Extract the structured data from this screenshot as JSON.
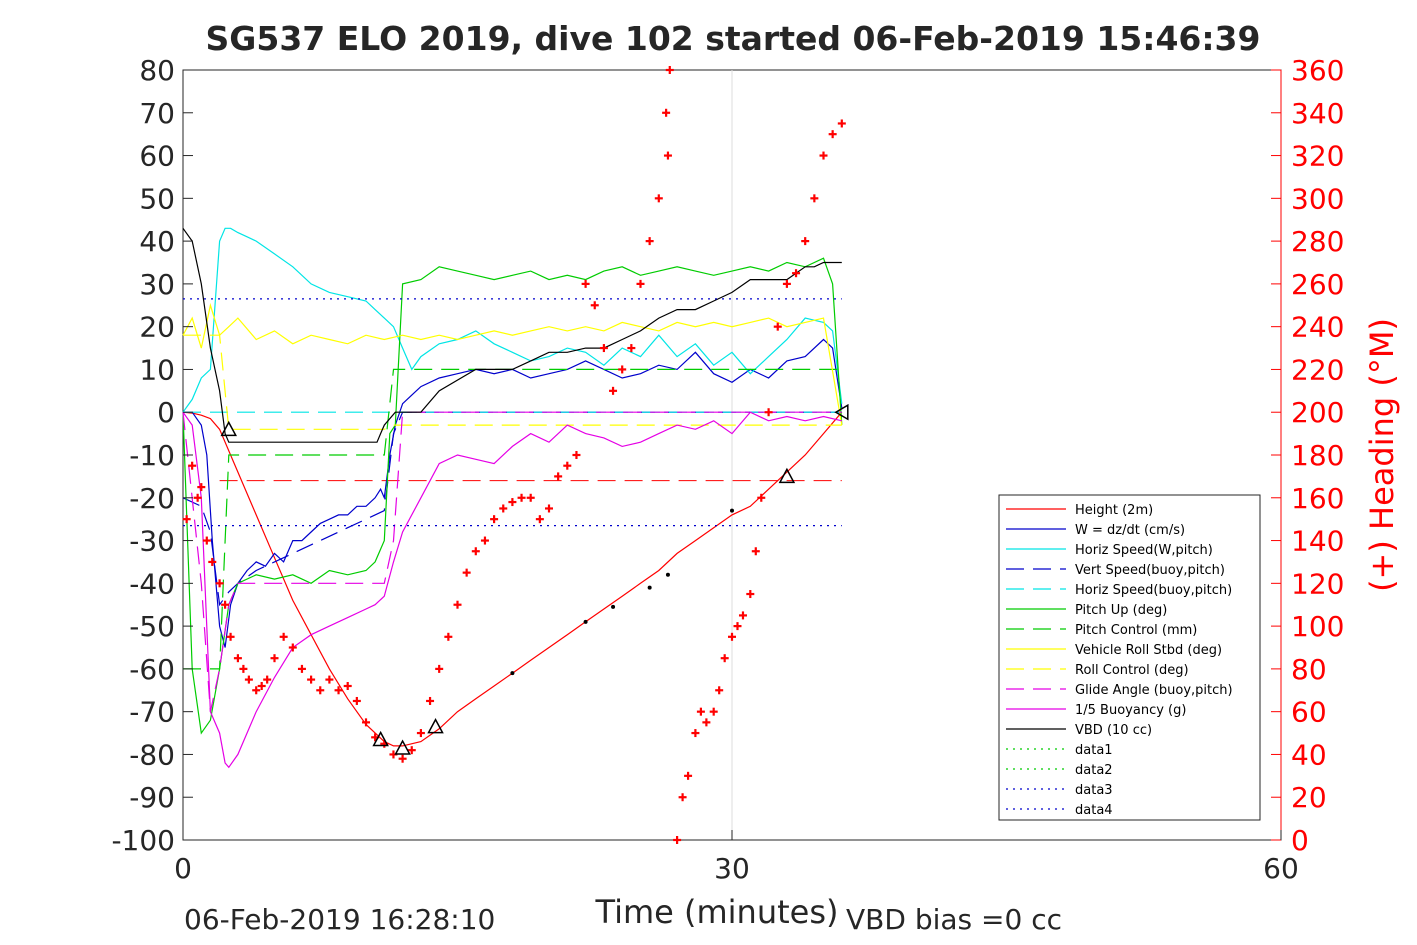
{
  "chart_data": {
    "type": "line",
    "title": "SG537 ELO 2019, dive 102 started 06-Feb-2019 15:46:39",
    "xlabel": "Time (minutes)",
    "ylabel_right": "(+) Heading (°M)",
    "footer_left": "06-Feb-2019 16:28:10",
    "footer_right": "VBD bias =0 cc",
    "xlim": [
      0,
      60
    ],
    "ylim": [
      -100,
      80
    ],
    "y2lim": [
      0,
      360
    ],
    "x_ticks": [
      "0",
      "30",
      "60"
    ],
    "y_ticks": [
      "-100",
      "-90",
      "-80",
      "-70",
      "-60",
      "-50",
      "-40",
      "-30",
      "-20",
      "-10",
      "0",
      "10",
      "20",
      "30",
      "40",
      "50",
      "60",
      "70",
      "80"
    ],
    "y2_ticks": [
      "0",
      "20",
      "40",
      "60",
      "80",
      "100",
      "120",
      "140",
      "160",
      "180",
      "200",
      "220",
      "240",
      "260",
      "280",
      "300",
      "320",
      "340",
      "360"
    ],
    "grid": "x only at 30",
    "legend_position": "lower-right",
    "colors": {
      "height": "#ff0000",
      "w": "#0000cc",
      "horiz": "#00e5e5",
      "pitch": "#00cc00",
      "roll": "#ffff00",
      "glide": "#e500e5",
      "vbd": "#000000",
      "heading": "#ff0000",
      "right_axis": "#ff0000"
    },
    "series": [
      {
        "name": "Height (2m)",
        "style": "solid",
        "color": "#ff0000",
        "x": [
          0,
          0.5,
          1,
          1.5,
          2,
          3,
          4,
          5,
          6,
          7,
          8,
          9,
          10,
          11,
          11.5,
          12,
          13,
          14,
          15,
          16,
          17,
          18,
          19,
          20,
          21,
          22,
          23,
          24,
          25,
          26,
          27,
          28,
          29,
          30,
          31,
          32,
          33,
          34,
          35,
          36
        ],
        "y": [
          0,
          -0.2,
          -0.7,
          -1.5,
          -4,
          -14,
          -24,
          -34,
          -44,
          -52,
          -60,
          -67,
          -73,
          -77,
          -78,
          -78,
          -77,
          -74,
          -70,
          -67,
          -64,
          -61,
          -58,
          -55,
          -52,
          -49,
          -46,
          -43,
          -40,
          -37,
          -33,
          -30,
          -27,
          -24,
          -22,
          -18,
          -14,
          -10,
          -5,
          0
        ]
      },
      {
        "name": "W = dz/dt (cm/s)",
        "style": "solid",
        "color": "#0000cc",
        "x": [
          0,
          0.5,
          1,
          1.3,
          1.6,
          2,
          2.3,
          2.6,
          3,
          3.5,
          4,
          4.5,
          5,
          5.5,
          6,
          6.5,
          7,
          7.5,
          8,
          8.5,
          9,
          9.5,
          10,
          10.5,
          10.8,
          11,
          11.3,
          11.6,
          12,
          12.5,
          13,
          14,
          15,
          16,
          17,
          18,
          19,
          20,
          21,
          22,
          23,
          24,
          25,
          26,
          27,
          28,
          29,
          30,
          31,
          32,
          33,
          34,
          35,
          35.5,
          36
        ],
        "y": [
          0,
          0,
          -3,
          -10,
          -30,
          -50,
          -55,
          -45,
          -40,
          -37,
          -35,
          -36,
          -33,
          -35,
          -30,
          -30,
          -28,
          -26,
          -25,
          -24,
          -24,
          -22,
          -22,
          -20,
          -18,
          -20,
          -10,
          -3,
          2,
          4,
          6,
          8,
          9,
          10,
          9,
          10,
          8,
          9,
          10,
          12,
          10,
          8,
          9,
          11,
          10,
          14,
          9,
          7,
          10,
          8,
          12,
          13,
          17,
          15,
          1
        ]
      },
      {
        "name": "Horiz Speed(W,pitch)",
        "style": "solid",
        "color": "#00e5e5",
        "x": [
          0,
          0.5,
          1,
          1.5,
          2,
          2.3,
          2.6,
          3,
          3.5,
          4,
          5,
          6,
          7,
          8,
          9,
          10,
          10.5,
          11,
          11.5,
          12,
          12.5,
          13,
          14,
          15,
          16,
          17,
          18,
          19,
          20,
          21,
          22,
          23,
          24,
          25,
          26,
          27,
          28,
          29,
          30,
          31,
          32,
          33,
          34,
          35,
          35.5,
          36
        ],
        "y": [
          0,
          3,
          8,
          10,
          40,
          43,
          43,
          42,
          41,
          40,
          37,
          34,
          30,
          28,
          27,
          26,
          24,
          22,
          20,
          15,
          10,
          13,
          16,
          17,
          19,
          16,
          14,
          12,
          13,
          15,
          14,
          11,
          15,
          13,
          18,
          13,
          16,
          11,
          14,
          9,
          13,
          17,
          22,
          21,
          19,
          2
        ]
      },
      {
        "name": "Vert Speed(buoy,pitch)",
        "style": "dash",
        "color": "#0000cc",
        "x": [
          0,
          1,
          1.5,
          2,
          2.5,
          3,
          4,
          5,
          6,
          7,
          8,
          9,
          10,
          11,
          11.5,
          12,
          13,
          14,
          15,
          16,
          17,
          18,
          19,
          20,
          21,
          22,
          23,
          24,
          25,
          26,
          27,
          28,
          29,
          30,
          31,
          32,
          33,
          34,
          35,
          36
        ],
        "y": [
          -20,
          -22,
          -28,
          -45,
          -42,
          -40,
          -37,
          -35,
          -33,
          -31,
          -29,
          -27,
          -25,
          -23,
          -5,
          0,
          0,
          0,
          0,
          0,
          0,
          0,
          0,
          0,
          0,
          0,
          0,
          0,
          0,
          0,
          0,
          0,
          0,
          0,
          0,
          0,
          0,
          0,
          0,
          0
        ]
      },
      {
        "name": "Horiz Speed(buoy,pitch)",
        "style": "dash",
        "color": "#00e5e5",
        "x": [
          0,
          2,
          12,
          12.5,
          36
        ],
        "y": [
          0,
          0,
          0,
          0,
          0
        ]
      },
      {
        "name": "Pitch Up (deg)",
        "style": "solid",
        "color": "#00cc00",
        "x": [
          0,
          0.5,
          1,
          1.5,
          2,
          2.5,
          3,
          4,
          5,
          6,
          7,
          8,
          9,
          10,
          10.5,
          11,
          11.3,
          11.6,
          12,
          13,
          14,
          15,
          16,
          17,
          18,
          19,
          20,
          21,
          22,
          23,
          24,
          25,
          26,
          27,
          28,
          29,
          30,
          31,
          32,
          33,
          34,
          35,
          35.5,
          36
        ],
        "y": [
          0,
          -60,
          -75,
          -72,
          -60,
          -45,
          -40,
          -38,
          -39,
          -38,
          -40,
          -37,
          -38,
          -37,
          -35,
          -30,
          -5,
          -3,
          30,
          31,
          34,
          33,
          32,
          31,
          32,
          33,
          31,
          32,
          31,
          33,
          34,
          32,
          33,
          34,
          33,
          32,
          33,
          34,
          33,
          35,
          34,
          36,
          30,
          -3
        ]
      },
      {
        "name": "Pitch Control (mm)",
        "style": "dash",
        "color": "#00cc00",
        "x": [
          0,
          2,
          2.5,
          11,
          11.5,
          12,
          36
        ],
        "y": [
          -60,
          -60,
          -10,
          -10,
          10,
          10,
          10
        ]
      },
      {
        "name": "Vehicle Roll Stbd (deg)",
        "style": "solid",
        "color": "#ffff00",
        "x": [
          0,
          0.5,
          1,
          1.5,
          2,
          2.5,
          3,
          4,
          5,
          6,
          7,
          8,
          9,
          10,
          11,
          12,
          13,
          14,
          15,
          16,
          17,
          18,
          19,
          20,
          21,
          22,
          23,
          24,
          25,
          26,
          27,
          28,
          29,
          30,
          31,
          32,
          33,
          34,
          35,
          36
        ],
        "y": [
          18,
          22,
          15,
          25,
          18,
          20,
          22,
          17,
          19,
          16,
          18,
          17,
          16,
          18,
          17,
          18,
          17,
          18,
          17,
          18,
          19,
          18,
          19,
          20,
          19,
          20,
          19,
          21,
          20,
          19,
          21,
          20,
          21,
          20,
          21,
          22,
          20,
          21,
          22,
          -3
        ]
      },
      {
        "name": "Roll Control (deg)",
        "style": "dash",
        "color": "#ffff00",
        "x": [
          0,
          2,
          2.5,
          11,
          11.5,
          36
        ],
        "y": [
          18,
          18,
          -4,
          -4,
          -3,
          -3
        ]
      },
      {
        "name": "Glide Angle (buoy,pitch)",
        "style": "dash",
        "color": "#e500e5",
        "x": [
          0,
          1,
          1.5,
          2,
          2.5,
          3,
          4,
          11,
          11.5,
          12,
          36
        ],
        "y": [
          0,
          -40,
          -70,
          -60,
          -45,
          -40,
          -40,
          -40,
          -30,
          0,
          0
        ]
      },
      {
        "name": "1/5 Buoyancy (g)",
        "style": "solid",
        "color": "#e500e5",
        "x": [
          0,
          0.5,
          1,
          1.5,
          2,
          2.3,
          2.5,
          3,
          4,
          5,
          6,
          7,
          8,
          9,
          10,
          10.5,
          11,
          11.5,
          12,
          13,
          14,
          15,
          16,
          17,
          18,
          19,
          20,
          21,
          22,
          23,
          24,
          25,
          26,
          27,
          28,
          29,
          30,
          31,
          32,
          33,
          34,
          35,
          36
        ],
        "y": [
          0,
          -3,
          -20,
          -70,
          -75,
          -82,
          -83,
          -80,
          -70,
          -62,
          -55,
          -52,
          -50,
          -48,
          -46,
          -45,
          -43,
          -35,
          -28,
          -20,
          -12,
          -10,
          -11,
          -12,
          -8,
          -5,
          -7,
          -3,
          -5,
          -6,
          -8,
          -7,
          -5,
          -3,
          -4,
          -2,
          -5,
          0,
          -2,
          -1,
          -2,
          -1,
          -2
        ]
      },
      {
        "name": "VBD (10 cc)",
        "style": "solid",
        "color": "#000000",
        "x": [
          0,
          0.5,
          1,
          1.5,
          2,
          2.3,
          2.5,
          10.6,
          10.8,
          11,
          11.6,
          12,
          13,
          14,
          16,
          17,
          18,
          19,
          20,
          21,
          22,
          23,
          24,
          25,
          26,
          27,
          28,
          29,
          30,
          31,
          32,
          33,
          34,
          34.5,
          35,
          36
        ],
        "y": [
          43,
          40,
          30,
          15,
          5,
          -5,
          -7,
          -7,
          -5,
          -3,
          0,
          0,
          0,
          5,
          10,
          10,
          10,
          12,
          14,
          14,
          15,
          15,
          17,
          19,
          22,
          24,
          24,
          26,
          28,
          31,
          31,
          31,
          34,
          34,
          35,
          35
        ]
      },
      {
        "name": "data1",
        "style": "dot",
        "color": "#00cc00",
        "x": [],
        "y": []
      },
      {
        "name": "data2",
        "style": "dot",
        "color": "#00cc00",
        "x": [],
        "y": []
      },
      {
        "name": "data3",
        "style": "dot",
        "color": "#0000cc",
        "x": [
          0,
          36
        ],
        "y": [
          -26.5,
          -26.5
        ]
      },
      {
        "name": "data4",
        "style": "dot",
        "color": "#0000cc",
        "x": [
          0,
          36
        ],
        "y": [
          26.5,
          26.5
        ]
      }
    ],
    "height_dashed_level": -16,
    "height_level_x": [
      2,
      36
    ],
    "heading": {
      "axis": "right",
      "marker": "+",
      "color": "#ff0000",
      "x": [
        0.2,
        0.5,
        0.8,
        1,
        1.3,
        1.6,
        2,
        2.3,
        2.6,
        3,
        3.3,
        3.6,
        4,
        4.3,
        4.6,
        5,
        5.5,
        6,
        6.5,
        7,
        7.5,
        8,
        8.5,
        9,
        9.5,
        10,
        10.5,
        11,
        11.5,
        12,
        12.5,
        13,
        13.5,
        14,
        14.5,
        15,
        15.5,
        16,
        16.5,
        17,
        17.5,
        18,
        18.5,
        19,
        19.5,
        20,
        20.5,
        21,
        21.5,
        22,
        22.5,
        23,
        23.5,
        24,
        24.5,
        25,
        25.5,
        26,
        26.5,
        26.4,
        26.6,
        27,
        27.3,
        27.6,
        28,
        28.3,
        28.6,
        29,
        29.3,
        29.6,
        30,
        30.3,
        30.6,
        31,
        31.3,
        31.6,
        32,
        32.5,
        33,
        33.5,
        34,
        34.5,
        35,
        35.5,
        36
      ],
      "y": [
        150,
        175,
        160,
        165,
        140,
        130,
        120,
        110,
        95,
        85,
        80,
        75,
        70,
        72,
        75,
        85,
        95,
        90,
        80,
        75,
        70,
        75,
        70,
        72,
        65,
        55,
        48,
        45,
        40,
        38,
        42,
        50,
        65,
        80,
        95,
        110,
        125,
        135,
        140,
        150,
        155,
        158,
        160,
        160,
        150,
        155,
        170,
        175,
        180,
        260,
        250,
        230,
        210,
        220,
        230,
        260,
        280,
        300,
        320,
        340,
        360,
        0,
        20,
        30,
        50,
        60,
        55,
        60,
        70,
        85,
        95,
        100,
        105,
        115,
        135,
        160,
        200,
        240,
        260,
        265,
        280,
        300,
        320,
        330,
        335
      ]
    },
    "markers": {
      "triangles": [
        [
          2.5,
          -4
        ],
        [
          10.8,
          -76.5
        ],
        [
          12,
          -78.5
        ],
        [
          13.8,
          -73.5
        ],
        [
          33,
          -15
        ]
      ],
      "left_triangle": [
        36,
        0
      ],
      "black_dots_on_height": [
        [
          18,
          -61
        ],
        [
          22,
          -49
        ],
        [
          23.5,
          -45.5
        ],
        [
          25.5,
          -41
        ],
        [
          26.5,
          -38
        ],
        [
          30,
          -23
        ]
      ]
    }
  }
}
